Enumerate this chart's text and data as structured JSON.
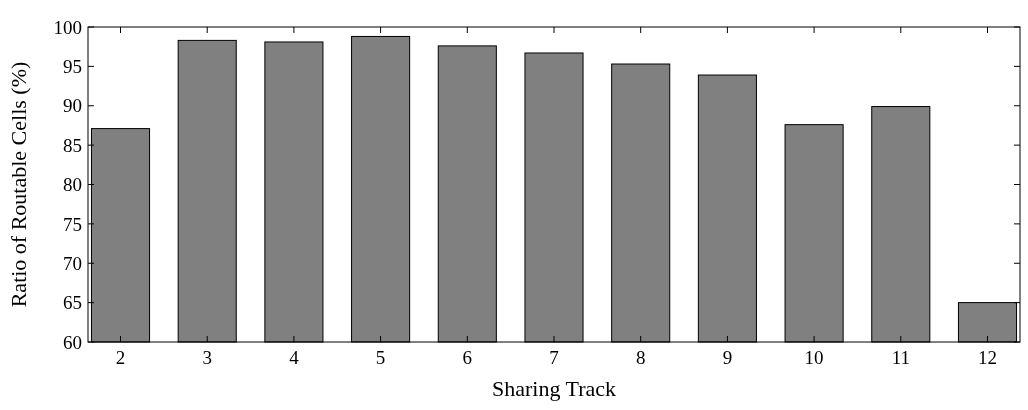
{
  "chart_data": {
    "type": "bar",
    "xlabel": "Sharing Track",
    "ylabel": "Ratio of Routable Cells (%)",
    "categories": [
      "2",
      "3",
      "4",
      "5",
      "6",
      "7",
      "8",
      "9",
      "10",
      "11",
      "12"
    ],
    "values": [
      87.1,
      98.3,
      98.1,
      98.8,
      97.6,
      96.7,
      95.3,
      93.9,
      87.6,
      89.9,
      65.0
    ],
    "color": "#808080",
    "ylim": [
      60,
      100
    ],
    "yticks": [
      60,
      65,
      70,
      75,
      80,
      85,
      90,
      95,
      100
    ],
    "grid": false
  }
}
